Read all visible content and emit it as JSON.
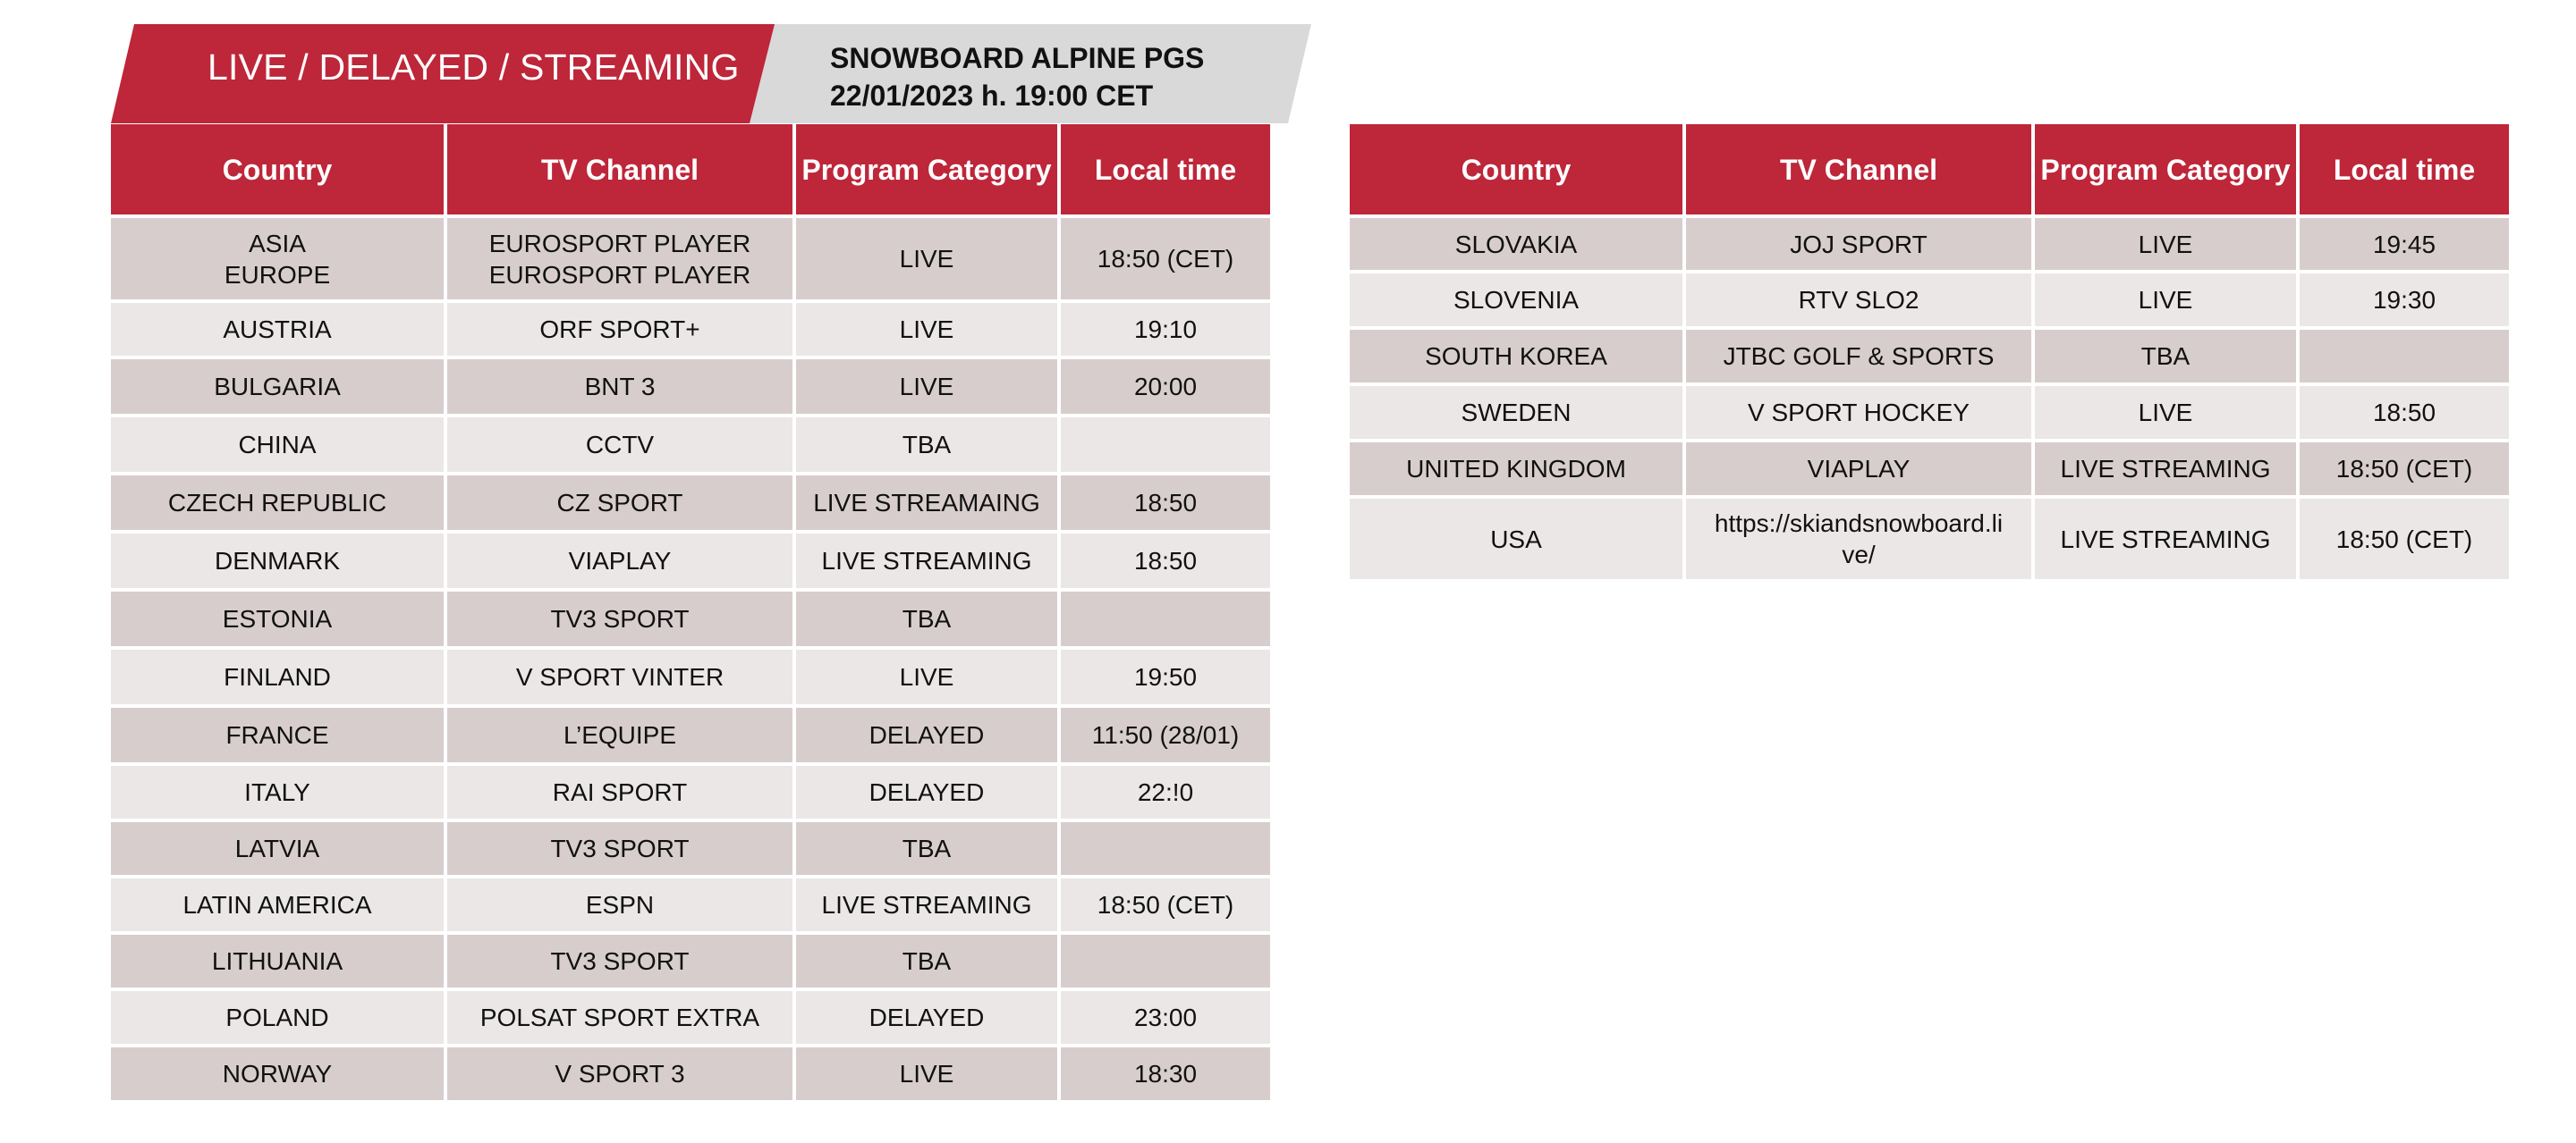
{
  "banner": {
    "title": "LIVE / DELAYED / STREAMING",
    "event_line1": "SNOWBOARD ALPINE PGS",
    "event_line2": "22/01/2023 h. 19:00 CET",
    "colors": {
      "red": "#be2639",
      "grey": "#d9d9d9"
    }
  },
  "headers": {
    "country": "Country",
    "channel": "TV Channel",
    "category_line1": "Program",
    "category_line2": "Category",
    "time": "Local time"
  },
  "left_rows": [
    {
      "country": [
        "ASIA",
        "EUROPE"
      ],
      "channel": [
        "EUROSPORT PLAYER",
        "EUROSPORT PLAYER"
      ],
      "category": "LIVE",
      "time": "18:50 (CET)"
    },
    {
      "country": [
        "AUSTRIA"
      ],
      "channel": [
        "ORF SPORT+"
      ],
      "category": "LIVE",
      "time": "19:10"
    },
    {
      "country": [
        "BULGARIA"
      ],
      "channel": [
        "BNT 3"
      ],
      "category": "LIVE",
      "time": "20:00"
    },
    {
      "country": [
        "CHINA"
      ],
      "channel": [
        "CCTV"
      ],
      "category": "TBA",
      "time": ""
    },
    {
      "country": [
        "CZECH REPUBLIC"
      ],
      "channel": [
        "CZ SPORT"
      ],
      "category": "LIVE STREAMAING",
      "time": "18:50"
    },
    {
      "country": [
        "DENMARK"
      ],
      "channel": [
        "VIAPLAY"
      ],
      "category": "LIVE STREAMING",
      "time": "18:50"
    },
    {
      "country": [
        "ESTONIA"
      ],
      "channel": [
        "TV3 SPORT"
      ],
      "category": "TBA",
      "time": ""
    },
    {
      "country": [
        "FINLAND"
      ],
      "channel": [
        "V SPORT VINTER"
      ],
      "category": "LIVE",
      "time": "19:50"
    },
    {
      "country": [
        "FRANCE"
      ],
      "channel": [
        "L’EQUIPE"
      ],
      "category": "DELAYED",
      "time": "11:50 (28/01)"
    },
    {
      "country": [
        "ITALY"
      ],
      "channel": [
        "RAI SPORT"
      ],
      "category": "DELAYED",
      "time": "22:!0"
    },
    {
      "country": [
        "LATVIA"
      ],
      "channel": [
        "TV3 SPORT"
      ],
      "category": "TBA",
      "time": ""
    },
    {
      "country": [
        "LATIN AMERICA"
      ],
      "channel": [
        "ESPN"
      ],
      "category": "LIVE STREAMING",
      "time": "18:50 (CET)"
    },
    {
      "country": [
        "LITHUANIA"
      ],
      "channel": [
        "TV3 SPORT"
      ],
      "category": "TBA",
      "time": ""
    },
    {
      "country": [
        "POLAND"
      ],
      "channel": [
        "POLSAT SPORT EXTRA"
      ],
      "category": "DELAYED",
      "time": "23:00"
    },
    {
      "country": [
        "NORWAY"
      ],
      "channel": [
        "V SPORT 3"
      ],
      "category": "LIVE",
      "time": "18:30"
    }
  ],
  "right_rows": [
    {
      "country": [
        "SLOVAKIA"
      ],
      "channel": [
        "JOJ SPORT"
      ],
      "category": "LIVE",
      "time": "19:45"
    },
    {
      "country": [
        "SLOVENIA"
      ],
      "channel": [
        "RTV SLO2"
      ],
      "category": "LIVE",
      "time": "19:30"
    },
    {
      "country": [
        "SOUTH KOREA"
      ],
      "channel": [
        "JTBC GOLF & SPORTS"
      ],
      "category": "TBA",
      "time": ""
    },
    {
      "country": [
        "SWEDEN"
      ],
      "channel": [
        "V SPORT HOCKEY"
      ],
      "category": "LIVE",
      "time": "18:50"
    },
    {
      "country": [
        "UNITED KINGDOM"
      ],
      "channel": [
        "VIAPLAY"
      ],
      "category": "LIVE STREAMING",
      "time": "18:50 (CET)"
    },
    {
      "country": [
        "USA"
      ],
      "channel": [
        "https://skiandsnowboard.li",
        "ve/"
      ],
      "category": "LIVE STREAMING",
      "time": "18:50 (CET)"
    }
  ]
}
